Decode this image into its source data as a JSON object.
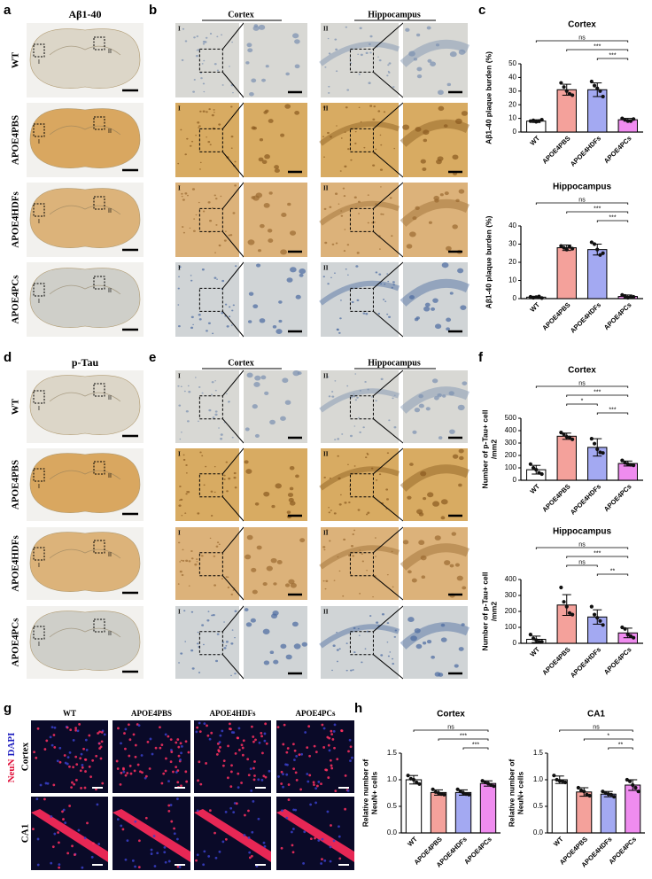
{
  "panel_letters": [
    "a",
    "b",
    "c",
    "d",
    "e",
    "f",
    "g",
    "h"
  ],
  "a": {
    "title": "Aβ1-40",
    "rows": [
      "WT",
      "APOE4PBS",
      "APOE4HDFs",
      "APOE4PCs"
    ]
  },
  "b": {
    "headers": [
      "Cortex",
      "Hippocampus"
    ],
    "region_labels": [
      "I",
      "II"
    ]
  },
  "d": {
    "title": "p-Tau",
    "rows": [
      "WT",
      "APOE4PBS",
      "APOE4HDFs",
      "APOE4PCs"
    ]
  },
  "e": {
    "headers": [
      "Cortex",
      "Hippocampus"
    ],
    "region_labels": [
      "I",
      "II"
    ]
  },
  "g": {
    "columns": [
      "WT",
      "APOE4PBS",
      "APOE4HDFs",
      "APOE4PCs"
    ],
    "rows": [
      "Cortex",
      "CA1"
    ],
    "stain": [
      "NeuN",
      "DAPI"
    ]
  },
  "chart_data": [
    {
      "type": "bar",
      "title": "Cortex",
      "ylabel": [
        "Aβ1-40 plaque burden (%)"
      ],
      "categories": [
        "WT",
        "APOE4PBS",
        "APOE4HDFs",
        "APOE4PCs"
      ],
      "colors": [
        "#ffffff",
        "#f4a19b",
        "#a3a9f2",
        "#ef8cef"
      ],
      "values": [
        8,
        31,
        31,
        9
      ],
      "errors": [
        1,
        4,
        5,
        1
      ],
      "points": [
        [
          8,
          8.5,
          7.5,
          8,
          9
        ],
        [
          36,
          33,
          30,
          28,
          27
        ],
        [
          37,
          34,
          32,
          30,
          26
        ],
        [
          10,
          9,
          8,
          8,
          9.5
        ]
      ],
      "ylim": [
        0,
        50
      ],
      "yticks": [
        0,
        10,
        20,
        30,
        40,
        50
      ],
      "annotations": [
        {
          "text": "ns",
          "from": "WT",
          "to": "APOE4PCs"
        },
        {
          "text": "***",
          "from": "APOE4PBS",
          "to": "APOE4PCs"
        },
        {
          "text": "***",
          "from": "APOE4HDFs",
          "to": "APOE4PCs"
        }
      ]
    },
    {
      "type": "bar",
      "title": "Hippocampus",
      "ylabel": [
        "Aβ1-40 plaque burden (%)"
      ],
      "categories": [
        "WT",
        "APOE4PBS",
        "APOE4HDFs",
        "APOE4PCs"
      ],
      "colors": [
        "#ffffff",
        "#f4a19b",
        "#a3a9f2",
        "#ef8cef"
      ],
      "values": [
        0.8,
        28,
        27,
        1.2
      ],
      "errors": [
        0.5,
        1.5,
        3,
        0.8
      ],
      "points": [
        [
          1,
          0.5,
          0.8,
          1.2,
          0.3
        ],
        [
          29,
          28,
          27,
          28.5,
          27.5
        ],
        [
          31,
          30,
          27,
          24,
          25
        ],
        [
          2,
          1.5,
          0.5,
          1,
          1
        ]
      ],
      "ylim": [
        0,
        40
      ],
      "yticks": [
        0,
        10,
        20,
        30,
        40
      ],
      "annotations": [
        {
          "text": "ns",
          "from": "WT",
          "to": "APOE4PCs"
        },
        {
          "text": "***",
          "from": "APOE4PBS",
          "to": "APOE4PCs"
        },
        {
          "text": "***",
          "from": "APOE4HDFs",
          "to": "APOE4PCs"
        }
      ]
    },
    {
      "type": "bar",
      "title": "Cortex",
      "ylabel": [
        "Number of p-Tau+ cell",
        "/mm2"
      ],
      "categories": [
        "WT",
        "APOE4PBS",
        "APOE4HDFs",
        "APOE4PCs"
      ],
      "colors": [
        "#ffffff",
        "#f4a19b",
        "#a3a9f2",
        "#ef8cef"
      ],
      "values": [
        85,
        355,
        265,
        135
      ],
      "errors": [
        35,
        25,
        70,
        20
      ],
      "points": [
        [
          130,
          100,
          85,
          60,
          50
        ],
        [
          385,
          370,
          350,
          345,
          330
        ],
        [
          335,
          295,
          250,
          225,
          220
        ],
        [
          160,
          140,
          130,
          125,
          120
        ]
      ],
      "ylim": [
        0,
        500
      ],
      "yticks": [
        0,
        100,
        200,
        300,
        400,
        500
      ],
      "annotations": [
        {
          "text": "ns",
          "from": "WT",
          "to": "APOE4PCs"
        },
        {
          "text": "***",
          "from": "APOE4PBS",
          "to": "APOE4PCs"
        },
        {
          "text": "*",
          "from": "APOE4PBS",
          "to": "APOE4HDFs"
        },
        {
          "text": "***",
          "from": "APOE4HDFs",
          "to": "APOE4PCs"
        }
      ]
    },
    {
      "type": "bar",
      "title": "Hippocampus",
      "ylabel": [
        "Number of p-Tau+ cell",
        "/mm2"
      ],
      "categories": [
        "WT",
        "APOE4PBS",
        "APOE4HDFs",
        "APOE4PCs"
      ],
      "colors": [
        "#ffffff",
        "#f4a19b",
        "#a3a9f2",
        "#ef8cef"
      ],
      "values": [
        25,
        240,
        165,
        65
      ],
      "errors": [
        20,
        65,
        45,
        30
      ],
      "points": [
        [
          55,
          30,
          20,
          10,
          10
        ],
        [
          350,
          260,
          230,
          190,
          180
        ],
        [
          230,
          180,
          160,
          140,
          115
        ],
        [
          100,
          90,
          55,
          45,
          35
        ]
      ],
      "ylim": [
        0,
        400
      ],
      "yticks": [
        0,
        100,
        200,
        300,
        400
      ],
      "annotations": [
        {
          "text": "ns",
          "from": "WT",
          "to": "APOE4PCs"
        },
        {
          "text": "***",
          "from": "APOE4PBS",
          "to": "APOE4PCs"
        },
        {
          "text": "ns",
          "from": "APOE4PBS",
          "to": "APOE4HDFs"
        },
        {
          "text": "**",
          "from": "APOE4HDFs",
          "to": "APOE4PCs"
        }
      ]
    },
    {
      "type": "bar",
      "title": "Cortex",
      "ylabel": [
        "Relative number of",
        "NeuN+ cells"
      ],
      "categories": [
        "WT",
        "APOE4PBS",
        "APOE4HDFs",
        "APOE4PCs"
      ],
      "colors": [
        "#ffffff",
        "#f4a19b",
        "#a3a9f2",
        "#ef8cef"
      ],
      "values": [
        1.0,
        0.76,
        0.76,
        0.93
      ],
      "errors": [
        0.08,
        0.05,
        0.05,
        0.05
      ],
      "points": [
        [
          1.08,
          1.02,
          1.0,
          0.95,
          0.92
        ],
        [
          0.82,
          0.77,
          0.75,
          0.73,
          0.72
        ],
        [
          0.82,
          0.78,
          0.75,
          0.73,
          0.72
        ],
        [
          0.98,
          0.95,
          0.93,
          0.9,
          0.88
        ]
      ],
      "ylim": [
        0,
        1.5
      ],
      "yticks": [
        {
          "value": 0,
          "label": "0.0"
        },
        0.5,
        {
          "value": 1,
          "label": "1.0"
        },
        1.5
      ],
      "annotations": [
        {
          "text": "ns",
          "from": "WT",
          "to": "APOE4PCs"
        },
        {
          "text": "***",
          "from": "APOE4PBS",
          "to": "APOE4PCs"
        },
        {
          "text": "***",
          "from": "APOE4HDFs",
          "to": "APOE4PCs"
        }
      ]
    },
    {
      "type": "bar",
      "title": "CA1",
      "ylabel": [
        "Relative number of",
        "NeuN+ cells"
      ],
      "categories": [
        "WT",
        "APOE4PBS",
        "APOE4HDFs",
        "APOE4PCs"
      ],
      "colors": [
        "#ffffff",
        "#f4a19b",
        "#a3a9f2",
        "#ef8cef"
      ],
      "values": [
        1.0,
        0.77,
        0.73,
        0.9
      ],
      "errors": [
        0.07,
        0.08,
        0.05,
        0.1
      ],
      "points": [
        [
          1.08,
          1.0,
          0.98,
          0.97,
          0.95
        ],
        [
          0.85,
          0.8,
          0.78,
          0.72,
          0.7
        ],
        [
          0.78,
          0.75,
          0.73,
          0.72,
          0.68
        ],
        [
          1.0,
          0.97,
          0.9,
          0.85,
          0.78
        ]
      ],
      "ylim": [
        0,
        1.5
      ],
      "yticks": [
        {
          "value": 0,
          "label": "0.0"
        },
        0.5,
        {
          "value": 1,
          "label": "1.0"
        },
        1.5
      ],
      "annotations": [
        {
          "text": "ns",
          "from": "WT",
          "to": "APOE4PCs"
        },
        {
          "text": "*",
          "from": "APOE4PBS",
          "to": "APOE4PCs"
        },
        {
          "text": "**",
          "from": "APOE4HDFs",
          "to": "APOE4PCs"
        }
      ]
    }
  ]
}
